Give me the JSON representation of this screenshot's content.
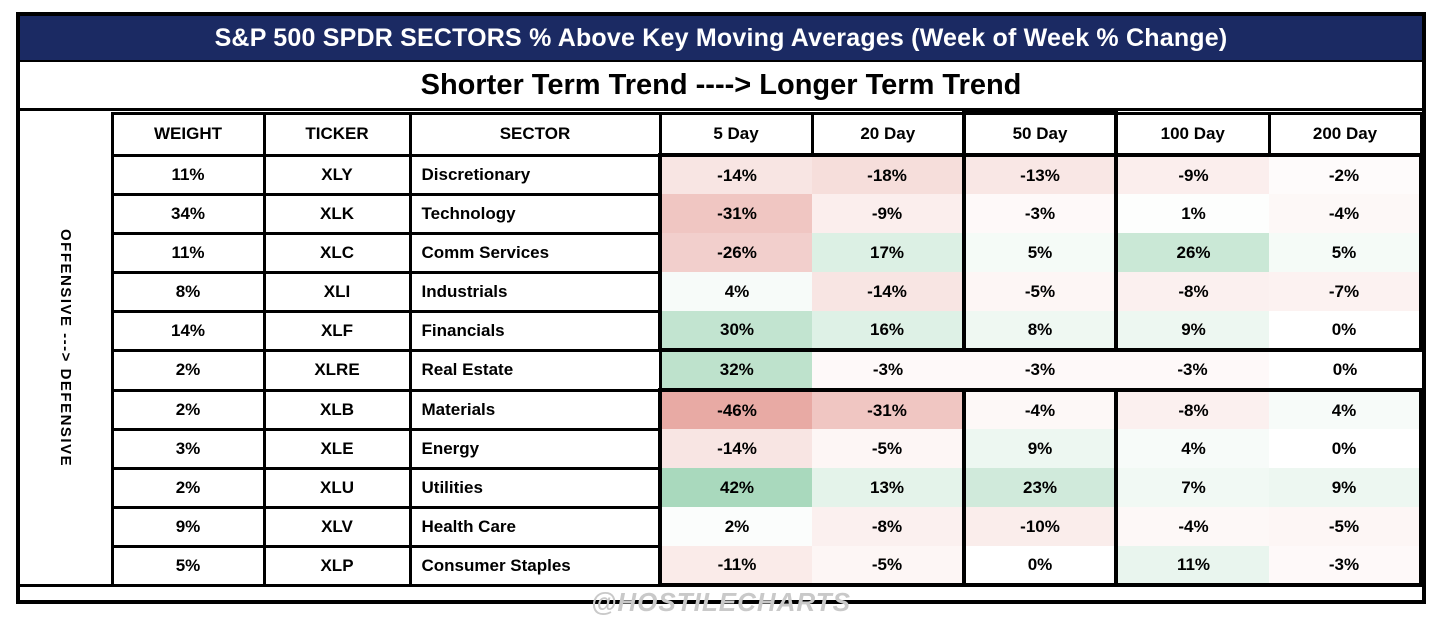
{
  "title": "S&P 500 SPDR SECTORS % Above Key Moving Averages (Week of Week % Change)",
  "subtitle": "Shorter Term Trend ----> Longer Term Trend",
  "side_label": "OFFENSIVE ---> DEFENSIVE",
  "watermark": "@HOSTILECHARTS",
  "colors": {
    "header_navy": "#1b2a63",
    "heat_negative_max": "#e6a39c",
    "heat_positive_max": "#99d2b0",
    "heat_scale_max": 50,
    "watermark_gray": "#c9c9c9"
  },
  "chart_data": {
    "type": "heatmap",
    "columns": [
      "WEIGHT",
      "TICKER",
      "SECTOR",
      "5 Day",
      "20 Day",
      "50 Day",
      "100 Day",
      "200 Day"
    ],
    "value_unit": "%",
    "rows": [
      {
        "weight": "11%",
        "ticker": "XLY",
        "sector": "Discretionary",
        "values": [
          -14,
          -18,
          -13,
          -9,
          -2
        ]
      },
      {
        "weight": "34%",
        "ticker": "XLK",
        "sector": "Technology",
        "values": [
          -31,
          -9,
          -3,
          1,
          -4
        ]
      },
      {
        "weight": "11%",
        "ticker": "XLC",
        "sector": "Comm Services",
        "values": [
          -26,
          17,
          5,
          26,
          5
        ]
      },
      {
        "weight": "8%",
        "ticker": "XLI",
        "sector": "Industrials",
        "values": [
          4,
          -14,
          -5,
          -8,
          -7
        ]
      },
      {
        "weight": "14%",
        "ticker": "XLF",
        "sector": "Financials",
        "values": [
          30,
          16,
          8,
          9,
          0
        ]
      },
      {
        "weight": "2%",
        "ticker": "XLRE",
        "sector": "Real Estate",
        "values": [
          32,
          -3,
          -3,
          -3,
          0
        ]
      },
      {
        "weight": "2%",
        "ticker": "XLB",
        "sector": "Materials",
        "values": [
          -46,
          -31,
          -4,
          -8,
          4
        ]
      },
      {
        "weight": "3%",
        "ticker": "XLE",
        "sector": "Energy",
        "values": [
          -14,
          -5,
          9,
          4,
          0
        ]
      },
      {
        "weight": "2%",
        "ticker": "XLU",
        "sector": "Utilities",
        "values": [
          42,
          13,
          23,
          7,
          9
        ]
      },
      {
        "weight": "9%",
        "ticker": "XLV",
        "sector": "Health Care",
        "values": [
          2,
          -8,
          -10,
          -4,
          -5
        ]
      },
      {
        "weight": "5%",
        "ticker": "XLP",
        "sector": "Consumer Staples",
        "values": [
          -11,
          -5,
          0,
          11,
          -3
        ]
      }
    ]
  }
}
